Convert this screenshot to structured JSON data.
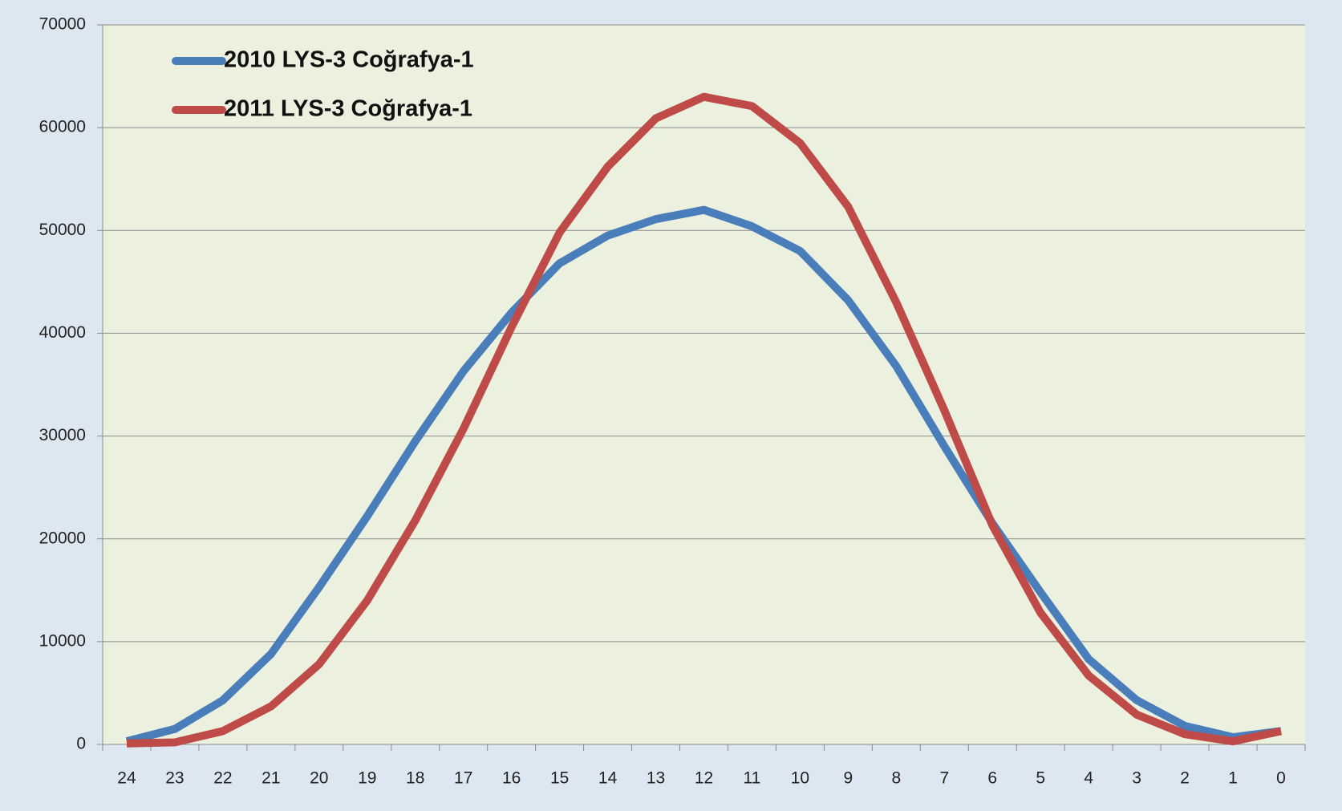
{
  "chart_data": {
    "type": "line",
    "categories": [
      "24",
      "23",
      "22",
      "21",
      "20",
      "19",
      "18",
      "17",
      "16",
      "15",
      "14",
      "13",
      "12",
      "11",
      "10",
      "9",
      "8",
      "7",
      "6",
      "5",
      "4",
      "3",
      "2",
      "1",
      "0"
    ],
    "series": [
      {
        "name": "2010 LYS-3 Coğrafya-1",
        "color": "#4a7ebb",
        "values": [
          300,
          1500,
          4300,
          8800,
          15300,
          22200,
          29500,
          36300,
          42000,
          46800,
          49500,
          51100,
          52000,
          50400,
          48000,
          43200,
          36800,
          29000,
          21500,
          14800,
          8300,
          4300,
          1800,
          700,
          1300
        ]
      },
      {
        "name": "2011 LYS-3 Coğrafya-1",
        "color": "#be4b48",
        "values": [
          100,
          200,
          1300,
          3700,
          7800,
          14000,
          21800,
          30700,
          40600,
          49800,
          56200,
          60900,
          63000,
          62100,
          58500,
          52300,
          43000,
          32500,
          21300,
          12800,
          6700,
          2900,
          1000,
          300,
          1300
        ]
      }
    ],
    "ylim": [
      0,
      70000
    ],
    "yticks": [
      0,
      10000,
      20000,
      30000,
      40000,
      50000,
      60000,
      70000
    ],
    "grid": true,
    "legend": "upper left"
  }
}
